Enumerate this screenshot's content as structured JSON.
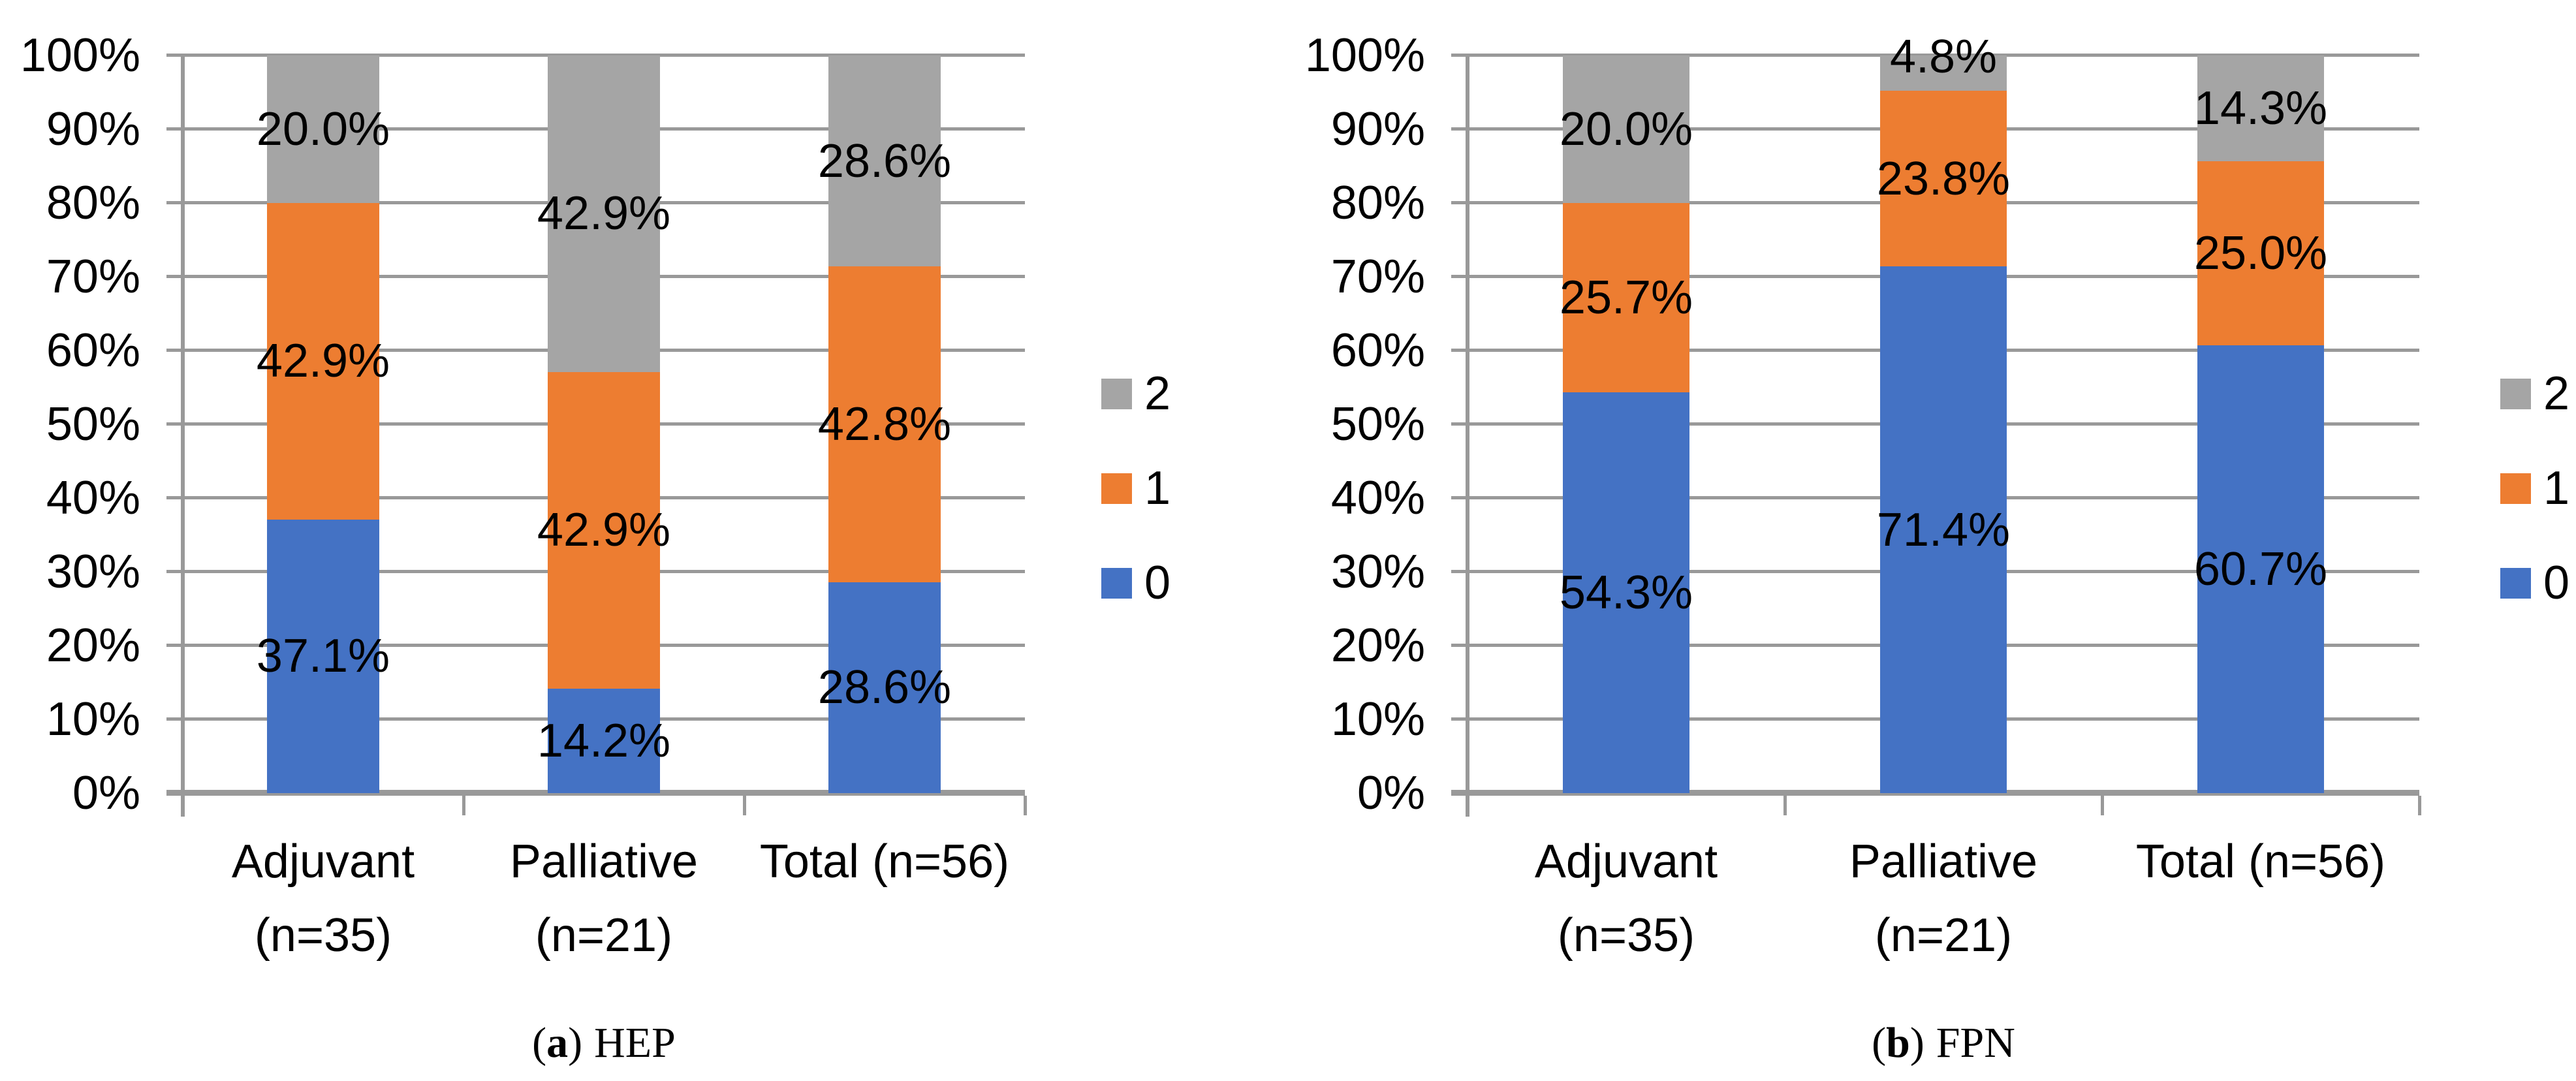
{
  "colors": {
    "series_0_blue": "#4472C4",
    "series_1_orange": "#ED7D31",
    "series_2_gray": "#A5A5A5",
    "gridline_gray": "#999999",
    "text": "#000000",
    "background": "#FFFFFF"
  },
  "chart_data": [
    {
      "type": "bar",
      "stacked": true,
      "units": "percent",
      "caption": {
        "open": "(",
        "letter": "a",
        "close": ")",
        "title": "HEP"
      },
      "categories": [
        [
          "Adjuvant",
          "(n=35)"
        ],
        [
          "Palliative",
          "(n=21)"
        ],
        [
          "Total (n=56)"
        ]
      ],
      "series": [
        {
          "name": "0",
          "color": "#4472C4",
          "values": [
            37.1,
            14.2,
            28.6
          ],
          "labels": [
            "37.1%",
            "14.2%",
            "28.6%"
          ]
        },
        {
          "name": "1",
          "color": "#ED7D31",
          "values": [
            42.9,
            42.9,
            42.8
          ],
          "labels": [
            "42.9%",
            "42.9%",
            "42.8%"
          ]
        },
        {
          "name": "2",
          "color": "#A5A5A5",
          "values": [
            20.0,
            42.9,
            28.6
          ],
          "labels": [
            "20.0%",
            "42.9%",
            "28.6%"
          ]
        }
      ],
      "legend": [
        {
          "name": "2",
          "color": "#A5A5A5"
        },
        {
          "name": "1",
          "color": "#ED7D31"
        },
        {
          "name": "0",
          "color": "#4472C4"
        }
      ],
      "legend_position": "right",
      "gridlines": true,
      "xlabel": "",
      "ylabel": "",
      "y_axis": {
        "min": 0,
        "max": 100,
        "step": 10,
        "ticks": [
          "100%",
          "90%",
          "80%",
          "70%",
          "60%",
          "50%",
          "40%",
          "30%",
          "20%",
          "10%",
          "0%"
        ]
      }
    },
    {
      "type": "bar",
      "stacked": true,
      "units": "percent",
      "caption": {
        "open": "(",
        "letter": "b",
        "close": ")",
        "title": "FPN"
      },
      "categories": [
        [
          "Adjuvant",
          "(n=35)"
        ],
        [
          "Palliative",
          "(n=21)"
        ],
        [
          "Total (n=56)"
        ]
      ],
      "series": [
        {
          "name": "0",
          "color": "#4472C4",
          "values": [
            54.3,
            71.4,
            60.7
          ],
          "labels": [
            "54.3%",
            "71.4%",
            "60.7%"
          ]
        },
        {
          "name": "1",
          "color": "#ED7D31",
          "values": [
            25.7,
            23.8,
            25.0
          ],
          "labels": [
            "25.7%",
            "23.8%",
            "25.0%"
          ]
        },
        {
          "name": "2",
          "color": "#A5A5A5",
          "values": [
            20.0,
            4.8,
            14.3
          ],
          "labels": [
            "20.0%",
            "4.8%",
            "14.3%"
          ]
        }
      ],
      "legend": [
        {
          "name": "2",
          "color": "#A5A5A5"
        },
        {
          "name": "1",
          "color": "#ED7D31"
        },
        {
          "name": "0",
          "color": "#4472C4"
        }
      ],
      "legend_position": "right",
      "gridlines": true,
      "xlabel": "",
      "ylabel": "",
      "y_axis": {
        "min": 0,
        "max": 100,
        "step": 10,
        "ticks": [
          "100%",
          "90%",
          "80%",
          "70%",
          "60%",
          "50%",
          "40%",
          "30%",
          "20%",
          "10%",
          "0%"
        ]
      }
    }
  ]
}
